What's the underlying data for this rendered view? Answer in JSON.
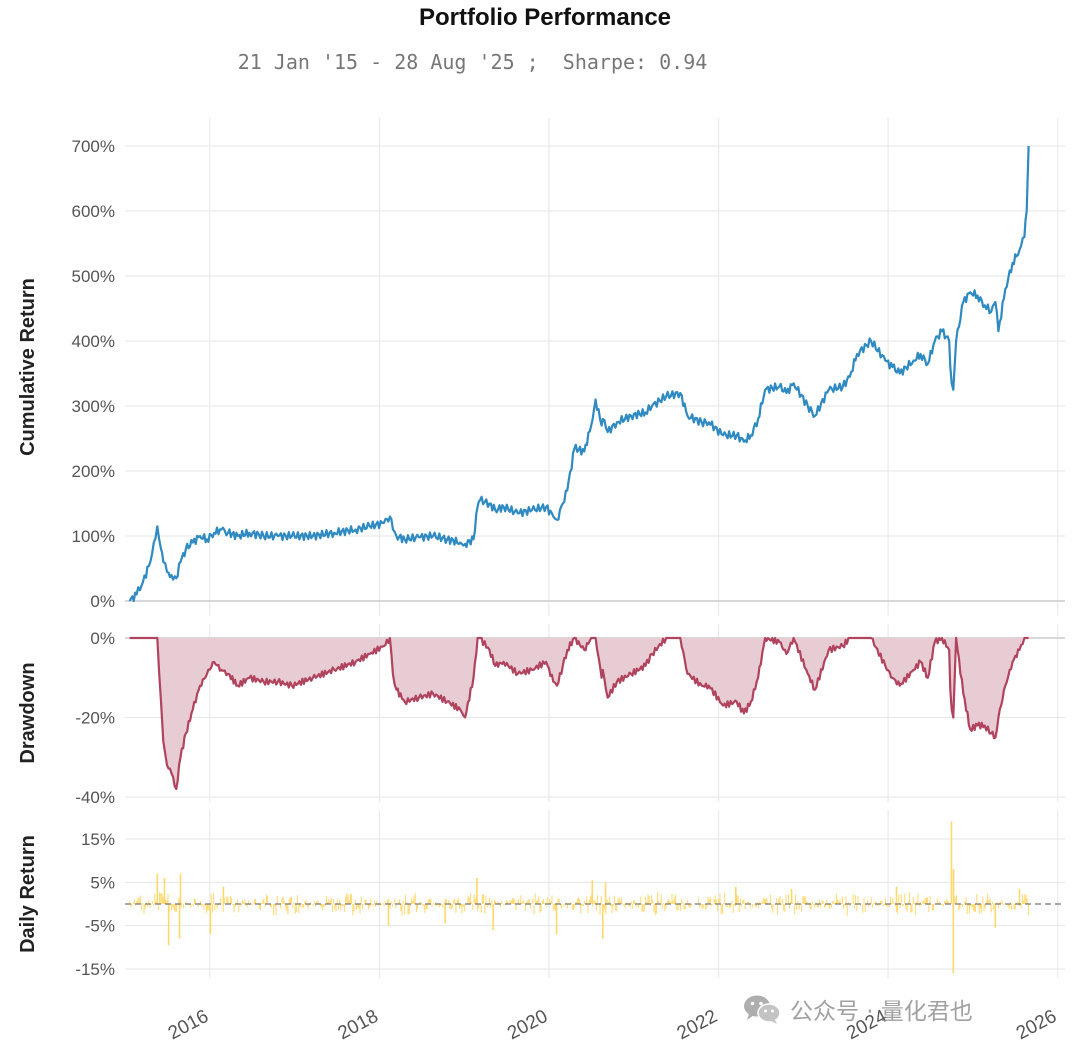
{
  "header": {
    "title": "Portfolio Performance",
    "subtitle": "21 Jan '15 - 28 Aug '25 ;  Sharpe: 0.94"
  },
  "watermark": {
    "text": "公众号 · 量化君也",
    "icon": "wechat-icon"
  },
  "colors": {
    "cumulative": "#2f8ac1",
    "drawdown": "#b0435e",
    "drawdown_fill": "#e8ccd3",
    "daily": "#ffd86b",
    "grid": "#e6e6e6",
    "axis_text": "#555555"
  },
  "chart_data": [
    {
      "type": "line",
      "ylabel": "Cumulative Return",
      "ylim": [
        -10,
        725
      ],
      "yticks": [
        0,
        100,
        200,
        300,
        400,
        500,
        600,
        700
      ],
      "ytick_labels": [
        "0%",
        "100%",
        "200%",
        "300%",
        "400%",
        "500%",
        "600%",
        "700%"
      ],
      "series": [
        {
          "x": [
            "2015-01-21",
            "2015-02-20",
            "2015-03-20",
            "2015-04-20",
            "2015-05-05",
            "2015-05-20",
            "2015-06-05",
            "2015-06-15",
            "2015-07-01",
            "2015-07-20",
            "2015-08-10",
            "2015-08-28",
            "2015-09-20",
            "2015-10-20",
            "2015-11-20",
            "2015-12-20",
            "2016-01-20",
            "2016-02-20",
            "2016-03-20",
            "2016-05-01",
            "2016-06-20",
            "2016-08-20",
            "2016-10-20",
            "2016-12-20",
            "2017-03-20",
            "2017-06-20",
            "2017-09-20",
            "2017-11-20",
            "2018-01-20",
            "2018-02-15",
            "2018-02-28",
            "2018-03-15",
            "2018-04-20",
            "2018-06-20",
            "2018-08-20",
            "2018-10-20",
            "2018-12-15",
            "2019-01-05",
            "2019-02-10",
            "2019-02-28",
            "2019-03-10",
            "2019-04-20",
            "2019-05-15",
            "2019-06-20",
            "2019-08-20",
            "2019-10-20",
            "2019-12-20",
            "2020-01-20",
            "2020-02-05",
            "2020-03-01",
            "2020-03-20",
            "2020-04-20",
            "2020-06-01",
            "2020-07-01",
            "2020-07-20",
            "2020-08-15",
            "2020-08-20",
            "2020-09-10",
            "2020-10-20",
            "2020-12-20",
            "2021-02-20",
            "2021-03-20",
            "2021-05-20",
            "2021-07-20",
            "2021-08-20",
            "2021-10-20",
            "2021-11-20",
            "2022-01-20",
            "2022-03-20",
            "2022-04-20",
            "2022-05-20",
            "2022-06-20",
            "2022-07-20",
            "2022-09-20",
            "2022-10-20",
            "2022-11-20",
            "2023-01-20",
            "2023-02-20",
            "2023-04-20",
            "2023-06-20",
            "2023-07-20",
            "2023-08-20",
            "2023-10-20",
            "2023-12-20",
            "2024-01-20",
            "2024-02-20",
            "2024-04-20",
            "2024-05-20",
            "2024-06-20",
            "2024-07-20",
            "2024-08-20",
            "2024-09-20",
            "2024-09-25",
            "2024-10-01",
            "2024-10-08",
            "2024-10-20",
            "2024-11-20",
            "2024-12-20",
            "2025-01-20",
            "2025-02-20",
            "2025-03-20",
            "2025-04-07",
            "2025-04-20",
            "2025-05-20",
            "2025-06-20",
            "2025-07-20",
            "2025-08-10",
            "2025-08-20",
            "2025-08-28"
          ],
          "y": [
            0,
            10,
            30,
            60,
            90,
            115,
            80,
            60,
            45,
            40,
            35,
            60,
            80,
            90,
            100,
            95,
            105,
            110,
            105,
            100,
            105,
            100,
            100,
            100,
            100,
            105,
            110,
            115,
            120,
            130,
            110,
            100,
            95,
            98,
            100,
            95,
            90,
            88,
            95,
            145,
            155,
            150,
            140,
            145,
            135,
            140,
            145,
            130,
            125,
            150,
            170,
            235,
            230,
            270,
            310,
            270,
            280,
            260,
            275,
            285,
            290,
            300,
            315,
            320,
            285,
            275,
            275,
            255,
            255,
            245,
            255,
            280,
            325,
            330,
            320,
            335,
            300,
            285,
            325,
            330,
            345,
            380,
            400,
            370,
            360,
            350,
            370,
            380,
            365,
            400,
            415,
            400,
            360,
            335,
            325,
            400,
            460,
            475,
            470,
            455,
            445,
            460,
            415,
            480,
            520,
            540,
            560,
            600,
            700
          ],
          "name": ""
        }
      ]
    },
    {
      "type": "area",
      "ylabel": "Drawdown",
      "ylim": [
        -40,
        1
      ],
      "yticks": [
        0,
        -20,
        -40
      ],
      "ytick_labels": [
        "0%",
        "-20%",
        "-40%"
      ],
      "series": [
        {
          "x": [
            "2015-01-21",
            "2015-02-20",
            "2015-03-20",
            "2015-04-20",
            "2015-05-05",
            "2015-05-20",
            "2015-06-05",
            "2015-06-15",
            "2015-07-01",
            "2015-07-20",
            "2015-08-10",
            "2015-08-28",
            "2015-09-20",
            "2015-10-20",
            "2015-11-20",
            "2015-12-20",
            "2016-01-20",
            "2016-02-20",
            "2016-03-20",
            "2016-05-01",
            "2016-06-20",
            "2016-08-20",
            "2016-10-20",
            "2016-12-20",
            "2017-03-20",
            "2017-06-20",
            "2017-09-20",
            "2017-11-20",
            "2018-01-20",
            "2018-02-15",
            "2018-02-28",
            "2018-03-15",
            "2018-04-20",
            "2018-06-20",
            "2018-08-20",
            "2018-10-20",
            "2018-12-15",
            "2019-01-05",
            "2019-02-10",
            "2019-02-28",
            "2019-03-10",
            "2019-04-20",
            "2019-05-15",
            "2019-06-20",
            "2019-08-20",
            "2019-10-20",
            "2019-12-20",
            "2020-01-20",
            "2020-02-05",
            "2020-03-01",
            "2020-03-20",
            "2020-04-20",
            "2020-06-01",
            "2020-07-01",
            "2020-07-20",
            "2020-08-15",
            "2020-08-20",
            "2020-09-10",
            "2020-10-20",
            "2020-12-20",
            "2021-02-20",
            "2021-03-20",
            "2021-05-20",
            "2021-07-20",
            "2021-08-20",
            "2021-10-20",
            "2021-11-20",
            "2022-01-20",
            "2022-03-20",
            "2022-04-20",
            "2022-05-20",
            "2022-06-20",
            "2022-07-20",
            "2022-09-20",
            "2022-10-20",
            "2022-11-20",
            "2023-01-20",
            "2023-02-20",
            "2023-04-20",
            "2023-06-20",
            "2023-07-20",
            "2023-08-20",
            "2023-10-20",
            "2023-12-20",
            "2024-01-20",
            "2024-02-20",
            "2024-04-20",
            "2024-05-20",
            "2024-06-20",
            "2024-07-20",
            "2024-08-20",
            "2024-09-20",
            "2024-09-25",
            "2024-10-01",
            "2024-10-08",
            "2024-10-20",
            "2024-11-20",
            "2024-12-20",
            "2025-01-20",
            "2025-02-20",
            "2025-03-20",
            "2025-04-07",
            "2025-04-20",
            "2025-05-20",
            "2025-06-20",
            "2025-07-20",
            "2025-08-10",
            "2025-08-20",
            "2025-08-28"
          ],
          "y": [
            0,
            0,
            0,
            0,
            0,
            0,
            -16,
            -26,
            -32,
            -34,
            -38,
            -30,
            -24,
            -18,
            -12,
            -9,
            -6,
            -8,
            -9,
            -12,
            -10,
            -11,
            -11,
            -12,
            -10,
            -8,
            -6,
            -4,
            -2,
            0,
            -9,
            -13,
            -16,
            -15,
            -14,
            -16,
            -18,
            -20,
            -10,
            0,
            0,
            -3,
            -7,
            -6,
            -9,
            -8,
            -6,
            -11,
            -12,
            -7,
            -3,
            0,
            -3,
            0,
            0,
            -10,
            -8,
            -15,
            -11,
            -9,
            -7,
            -4,
            0,
            0,
            -9,
            -12,
            -12,
            -17,
            -16,
            -19,
            -16,
            -10,
            0,
            -1,
            -4,
            0,
            -9,
            -13,
            -3,
            -2,
            0,
            0,
            0,
            -7,
            -10,
            -12,
            -8,
            -6,
            -10,
            -1,
            0,
            -3,
            -13,
            -18,
            -20,
            0,
            -14,
            -23,
            -22,
            -22,
            -24,
            -25,
            -20,
            -12,
            -6,
            -3,
            0,
            0,
            0
          ],
          "name": ""
        }
      ]
    },
    {
      "type": "bar",
      "ylabel": "Daily Return",
      "ylim": [
        -16,
        19
      ],
      "yticks": [
        15,
        5,
        -5,
        -15
      ],
      "ytick_labels": [
        "15%",
        "5%",
        "-5%",
        "-15%"
      ],
      "reference_line": 0,
      "x_range": [
        "2015-01-21",
        "2025-08-28"
      ],
      "spikes": [
        {
          "x": "2015-05-20",
          "y": 7
        },
        {
          "x": "2015-06-20",
          "y": 6
        },
        {
          "x": "2015-07-08",
          "y": -9.5
        },
        {
          "x": "2015-08-24",
          "y": -8
        },
        {
          "x": "2015-08-28",
          "y": 7
        },
        {
          "x": "2016-01-04",
          "y": -7
        },
        {
          "x": "2016-02-29",
          "y": 4
        },
        {
          "x": "2018-02-09",
          "y": -5
        },
        {
          "x": "2018-10-11",
          "y": -4.5
        },
        {
          "x": "2019-02-25",
          "y": 6
        },
        {
          "x": "2019-05-06",
          "y": -6
        },
        {
          "x": "2020-02-03",
          "y": -7
        },
        {
          "x": "2020-07-06",
          "y": 5.5
        },
        {
          "x": "2020-08-20",
          "y": -8
        },
        {
          "x": "2020-09-01",
          "y": 5
        },
        {
          "x": "2022-03-16",
          "y": 4
        },
        {
          "x": "2022-11-11",
          "y": 3.5
        },
        {
          "x": "2024-02-06",
          "y": 4
        },
        {
          "x": "2024-09-30",
          "y": 19
        },
        {
          "x": "2024-10-08",
          "y": -16
        },
        {
          "x": "2024-10-09",
          "y": 8
        },
        {
          "x": "2025-04-07",
          "y": -5.5
        },
        {
          "x": "2025-07-20",
          "y": 3.5
        }
      ],
      "typical_abs_return": 2
    }
  ],
  "x_axis": {
    "ticks": [
      "2016",
      "2018",
      "2020",
      "2022",
      "2024",
      "2026"
    ],
    "tick_labels": [
      "2016",
      "2018",
      "2020",
      "2022",
      "2024",
      "2026"
    ],
    "range": [
      "2015-01-01",
      "2026-02-01"
    ]
  }
}
